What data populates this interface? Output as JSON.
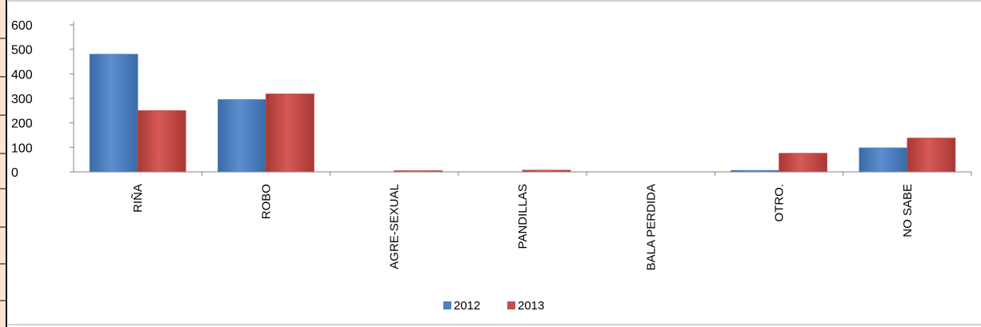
{
  "chart_data": {
    "type": "bar",
    "categories": [
      "RIÑA",
      "ROBO",
      "AGRE-SEXUAL",
      "PANDILLAS",
      "BALA PERDIDA",
      "OTRO.",
      "NO SABE"
    ],
    "series": [
      {
        "name": "2012",
        "values": [
          480,
          295,
          0,
          0,
          0,
          6,
          98
        ],
        "color": "#4f81bd"
      },
      {
        "name": "2013",
        "values": [
          250,
          318,
          3,
          7,
          0,
          76,
          138
        ],
        "color": "#c0504d"
      }
    ],
    "yticks": [
      "0",
      "100",
      "200",
      "300",
      "400",
      "500",
      "600"
    ],
    "ylim": [
      0,
      600
    ],
    "grid": false,
    "legend_position": "bottom"
  }
}
